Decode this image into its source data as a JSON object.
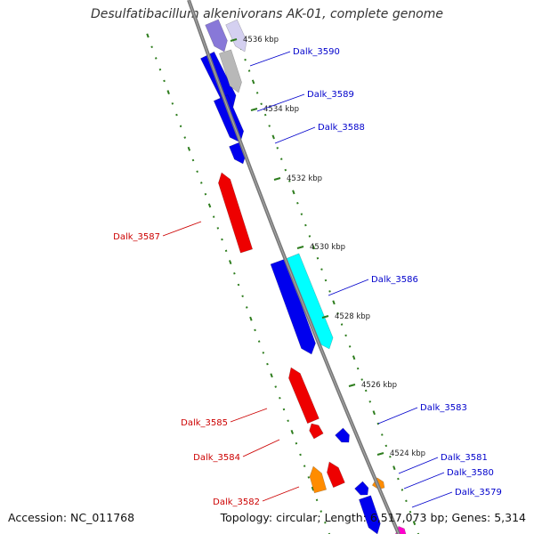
{
  "title": "Desulfatibacillum alkenivorans AK-01, complete genome",
  "footer": {
    "accession": "Accession: NC_011768",
    "topology": "Topology: circular; Length: 6,517,073 bp; Genes: 5,314"
  },
  "colors": {
    "backbone": "#777777",
    "tick_dots": "#2e7d1e",
    "forward_cds": "#0000ee",
    "reverse_cds": "#ee0000",
    "cyan_feature": "#00ffff",
    "grey_feature": "#b8b8b8",
    "lavender_feature": "#8878d8",
    "orange_feature": "#ff8c00",
    "magenta_feature": "#ff00cc",
    "forward_label": "#0000cc",
    "reverse_label": "#cc0000"
  },
  "kbp_ticks": [
    "4536 kbp",
    "4534 kbp",
    "4532 kbp",
    "4530 kbp",
    "4528 kbp",
    "4526 kbp",
    "4524 kbp"
  ],
  "gene_labels": [
    {
      "text": "Dalk_3590",
      "strand": "forward"
    },
    {
      "text": "Dalk_3589",
      "strand": "forward"
    },
    {
      "text": "Dalk_3588",
      "strand": "forward"
    },
    {
      "text": "Dalk_3587",
      "strand": "reverse"
    },
    {
      "text": "Dalk_3586",
      "strand": "forward"
    },
    {
      "text": "Dalk_3585",
      "strand": "reverse"
    },
    {
      "text": "Dalk_3584",
      "strand": "reverse"
    },
    {
      "text": "Dalk_3583",
      "strand": "forward"
    },
    {
      "text": "Dalk_3582",
      "strand": "reverse"
    },
    {
      "text": "Dalk_3581",
      "strand": "forward"
    },
    {
      "text": "Dalk_3580",
      "strand": "forward"
    },
    {
      "text": "Dalk_3579",
      "strand": "forward"
    }
  ]
}
